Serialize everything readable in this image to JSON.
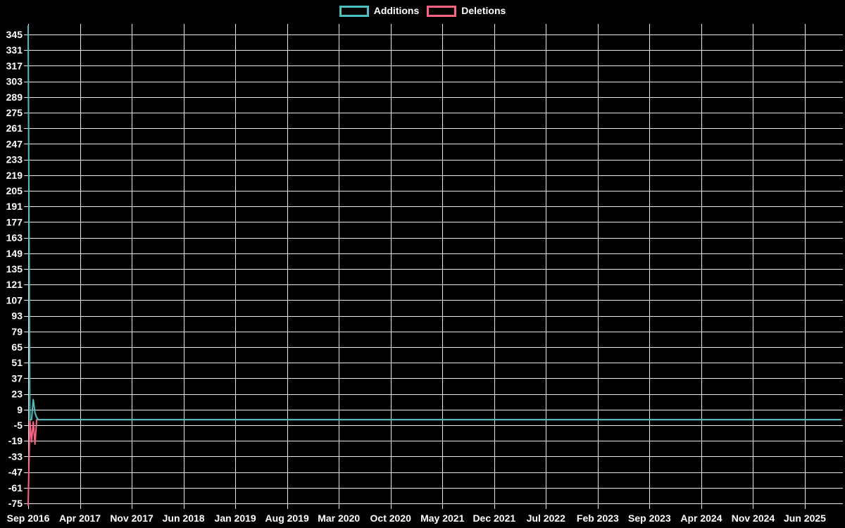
{
  "chart_data": {
    "type": "line",
    "legend_position": "top",
    "grid": true,
    "colors": {
      "background": "#000000",
      "grid": "#e8e8e8",
      "tick_text": "#ffffff",
      "additions": "#4bc0c0",
      "deletions": "#ff6384"
    },
    "y_ticks": [
      345,
      331,
      317,
      303,
      289,
      275,
      261,
      247,
      233,
      219,
      205,
      191,
      177,
      163,
      149,
      135,
      121,
      107,
      93,
      79,
      65,
      51,
      37,
      23,
      9,
      -5,
      -19,
      -33,
      -47,
      -61,
      -75
    ],
    "x_ticks": [
      "Sep 2016",
      "Apr 2017",
      "Nov 2017",
      "Jun 2018",
      "Jan 2019",
      "Aug 2019",
      "Mar 2020",
      "Oct 2020",
      "May 2021",
      "Dec 2021",
      "Jul 2022",
      "Feb 2023",
      "Sep 2023",
      "Apr 2024",
      "Nov 2024",
      "Jun 2025"
    ],
    "ylim": [
      -77,
      354
    ],
    "x_months_per_tick": 7,
    "series": [
      {
        "name": "Additions",
        "color": "#4bc0c0",
        "points": [
          {
            "week": 0,
            "value": 353
          },
          {
            "week": 1,
            "value": 0
          },
          {
            "week": 2,
            "value": 0
          },
          {
            "week": 3,
            "value": 18
          },
          {
            "week": 4,
            "value": 6
          },
          {
            "week": 5,
            "value": 2
          },
          {
            "week": 6,
            "value": 0
          },
          {
            "week": 478,
            "value": 0
          }
        ]
      },
      {
        "name": "Deletions",
        "color": "#ff6384",
        "points": [
          {
            "week": 0,
            "value": -77
          },
          {
            "week": 1,
            "value": 0
          },
          {
            "week": 2,
            "value": -20
          },
          {
            "week": 3,
            "value": -2
          },
          {
            "week": 4,
            "value": -22
          },
          {
            "week": 5,
            "value": 0
          },
          {
            "week": 478,
            "value": 0
          }
        ]
      }
    ]
  }
}
